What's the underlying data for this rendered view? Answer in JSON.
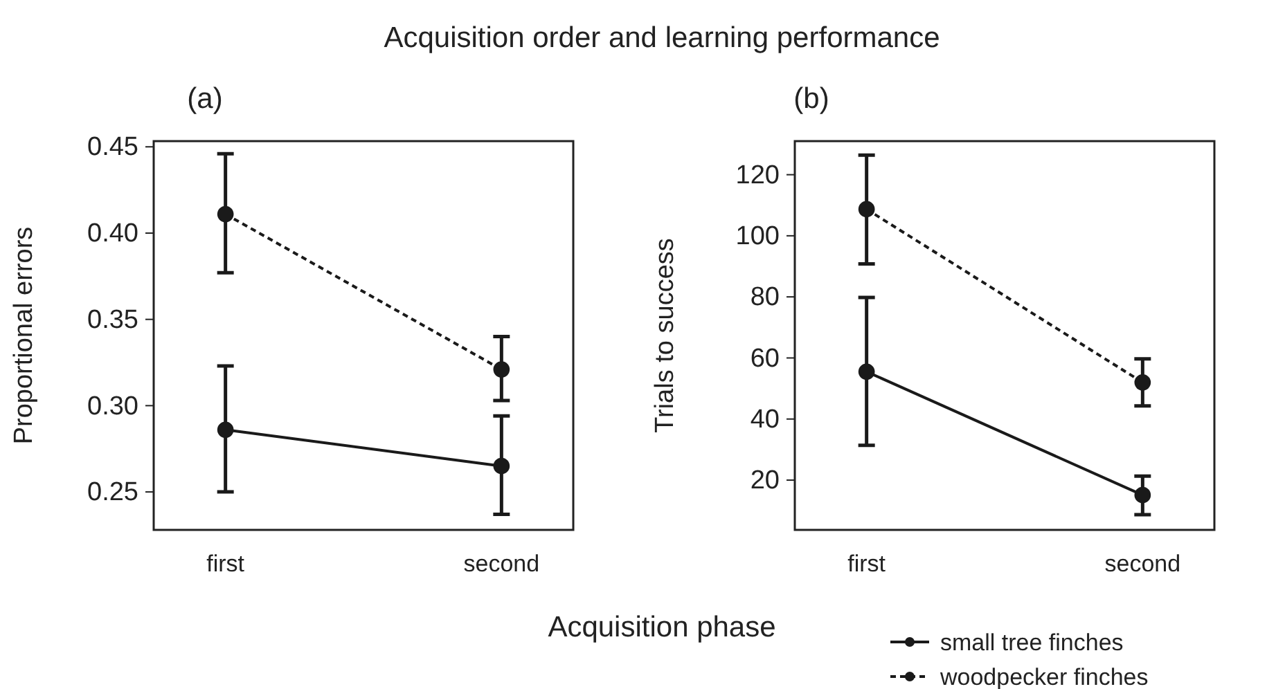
{
  "chart_data": [
    {
      "type": "line",
      "title": "Acquisition order and learning performance",
      "subtitle": "(a)",
      "xlabel": "Acquisition phase",
      "ylabel": "Proportional errors",
      "categories": [
        "first",
        "second"
      ],
      "ylim": [
        0.228,
        0.4533
      ],
      "yticks": [
        {
          "value": 0.25,
          "label": "0.25"
        },
        {
          "value": 0.3,
          "label": "0.30"
        },
        {
          "value": 0.35,
          "label": "0.35"
        },
        {
          "value": 0.4,
          "label": "0.40"
        },
        {
          "value": 0.45,
          "label": "0.45"
        }
      ],
      "marker": "circle",
      "legend": false,
      "grid": false,
      "series": [
        {
          "color": "#1a1a1a",
          "line_style": "solid",
          "values": [
            0.286,
            0.265
          ],
          "errors": [
            [
              0.25,
              0.323
            ],
            [
              0.237,
              0.294
            ]
          ]
        },
        {
          "color": "#1a1a1a",
          "line_style": "dashed",
          "values": [
            0.411,
            0.321
          ],
          "errors": [
            [
              0.377,
              0.446
            ],
            [
              0.303,
              0.34
            ]
          ]
        }
      ]
    },
    {
      "type": "line",
      "subtitle": "(b)",
      "ylabel": "Trials to success",
      "categories": [
        "first",
        "second"
      ],
      "ylim": [
        3.7,
        131
      ],
      "yticks": [
        20,
        40,
        60,
        80,
        100,
        120
      ],
      "marker": "circle",
      "legend": "bottom right",
      "grid": false,
      "series": [
        {
          "name": "small tree finches",
          "color": "#1a1a1a",
          "line_style": "solid",
          "values": [
            55.5,
            15.1
          ],
          "errors": [
            [
              31.4,
              79.8
            ],
            [
              8.7,
              21.3
            ]
          ]
        },
        {
          "name": "woodpecker finches",
          "color": "#1a1a1a",
          "line_style": "dashed",
          "values": [
            108.7,
            52
          ],
          "errors": [
            [
              90.8,
              126.4
            ],
            [
              44.3,
              59.7
            ]
          ]
        }
      ]
    }
  ]
}
